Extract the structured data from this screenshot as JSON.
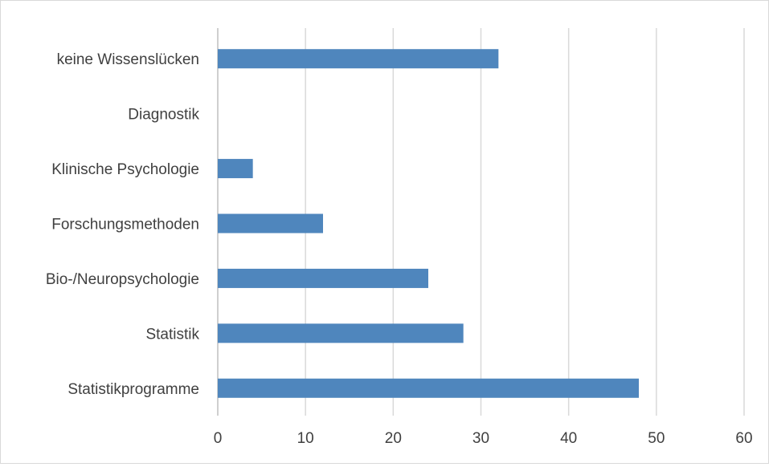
{
  "chart_data": {
    "type": "bar",
    "orientation": "horizontal",
    "categories": [
      "keine Wissenslücken",
      "Diagnostik",
      "Klinische Psychologie",
      "Forschungsmethoden ",
      "Bio-/Neuropsychologie",
      "Statistik",
      "Statistikprogramme"
    ],
    "values": [
      32,
      0,
      4,
      12,
      24,
      28,
      48
    ],
    "title": "",
    "xlabel": "",
    "ylabel": "",
    "xlim": [
      0,
      60
    ],
    "xticks": [
      0,
      10,
      20,
      30,
      40,
      50,
      60
    ],
    "grid": "vertical",
    "legend": "none",
    "bar_color": "#4f86bd",
    "grid_color": "#d9d9d9"
  }
}
